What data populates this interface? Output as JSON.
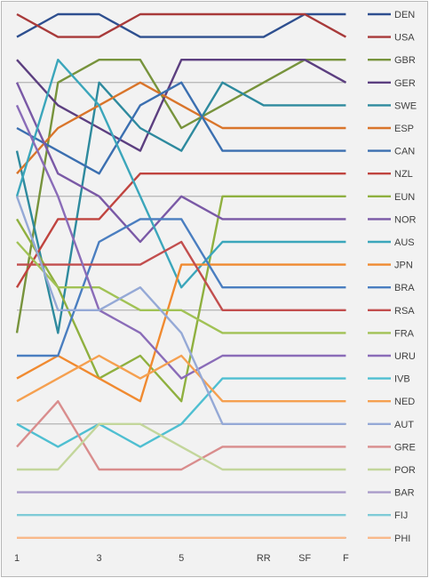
{
  "chart_data": {
    "type": "line",
    "title": "",
    "xlabel": "",
    "ylabel": "",
    "x_labels": [
      "1",
      "",
      "3",
      "",
      "5",
      "",
      "RR",
      "SF",
      "F"
    ],
    "y_range": [
      1,
      24
    ],
    "y_inverted": true,
    "y_meaning": "rank (1 = top)",
    "grid": "horizontal gridlines every 5 ranks",
    "legend_position": "right",
    "series": [
      {
        "name": "DEN",
        "color": "#2e4f8f",
        "values": [
          2,
          1,
          1,
          2,
          2,
          2,
          2,
          1,
          1
        ]
      },
      {
        "name": "USA",
        "color": "#a83a3a",
        "values": [
          1,
          2,
          2,
          1,
          1,
          1,
          1,
          1,
          2
        ]
      },
      {
        "name": "GBR",
        "color": "#77933c",
        "values": [
          15,
          4,
          3,
          3,
          6,
          5,
          4,
          3,
          3
        ]
      },
      {
        "name": "GER",
        "color": "#5c3f80",
        "values": [
          3,
          5,
          6,
          7,
          3,
          3,
          3,
          3,
          4
        ]
      },
      {
        "name": "SWE",
        "color": "#2e8a9e",
        "values": [
          7,
          15,
          4,
          6,
          7,
          4,
          5,
          5,
          5
        ]
      },
      {
        "name": "ESP",
        "color": "#d9752b",
        "values": [
          8,
          6,
          5,
          4,
          5,
          6,
          6,
          6,
          6
        ]
      },
      {
        "name": "CAN",
        "color": "#3b6fb0",
        "values": [
          6,
          7,
          8,
          5,
          4,
          7,
          7,
          7,
          7
        ]
      },
      {
        "name": "NZL",
        "color": "#c0443f",
        "values": [
          13,
          10,
          10,
          8,
          8,
          8,
          8,
          8,
          8
        ]
      },
      {
        "name": "EUN",
        "color": "#8fb03f",
        "values": [
          10,
          13,
          17,
          16,
          18,
          9,
          9,
          9,
          9
        ]
      },
      {
        "name": "NOR",
        "color": "#7a59a6",
        "values": [
          4,
          8,
          9,
          11,
          9,
          10,
          10,
          10,
          10
        ]
      },
      {
        "name": "AUS",
        "color": "#3ba6bb",
        "values": [
          9,
          3,
          5,
          9,
          13,
          11,
          11,
          11,
          11
        ]
      },
      {
        "name": "JPN",
        "color": "#f08a30",
        "values": [
          17,
          16,
          17,
          18,
          12,
          12,
          12,
          12,
          12
        ]
      },
      {
        "name": "BRA",
        "color": "#4a7ec0",
        "values": [
          16,
          16,
          11,
          10,
          10,
          13,
          13,
          13,
          13
        ]
      },
      {
        "name": "RSA",
        "color": "#c24e4e",
        "values": [
          12,
          12,
          12,
          12,
          11,
          14,
          14,
          14,
          14
        ]
      },
      {
        "name": "FRA",
        "color": "#a1c255",
        "values": [
          11,
          13,
          13,
          14,
          14,
          15,
          15,
          15,
          15
        ]
      },
      {
        "name": "URU",
        "color": "#8a6cb8",
        "values": [
          5,
          9,
          14,
          15,
          17,
          16,
          16,
          16,
          16
        ]
      },
      {
        "name": "IVB",
        "color": "#4fbfd1",
        "values": [
          19,
          20,
          19,
          20,
          19,
          17,
          17,
          17,
          17
        ]
      },
      {
        "name": "NED",
        "color": "#f5a050",
        "values": [
          18,
          17,
          16,
          17,
          16,
          18,
          18,
          18,
          18
        ]
      },
      {
        "name": "AUT",
        "color": "#95a9d6",
        "values": [
          9,
          14,
          14,
          13,
          15,
          19,
          19,
          19,
          19
        ]
      },
      {
        "name": "GRE",
        "color": "#d98d8d",
        "values": [
          20,
          18,
          21,
          21,
          21,
          20,
          20,
          20,
          20
        ]
      },
      {
        "name": "POR",
        "color": "#c3d69b",
        "values": [
          21,
          21,
          19,
          19,
          20,
          21,
          21,
          21,
          21
        ]
      },
      {
        "name": "BAR",
        "color": "#a99bc9",
        "values": [
          22,
          22,
          22,
          22,
          22,
          22,
          22,
          22,
          22
        ]
      },
      {
        "name": "FIJ",
        "color": "#7fcbd7",
        "values": [
          23,
          23,
          23,
          23,
          23,
          23,
          23,
          23,
          23
        ]
      },
      {
        "name": "PHI",
        "color": "#f9b98a",
        "values": [
          24,
          24,
          24,
          24,
          24,
          24,
          24,
          24,
          24
        ]
      }
    ]
  }
}
